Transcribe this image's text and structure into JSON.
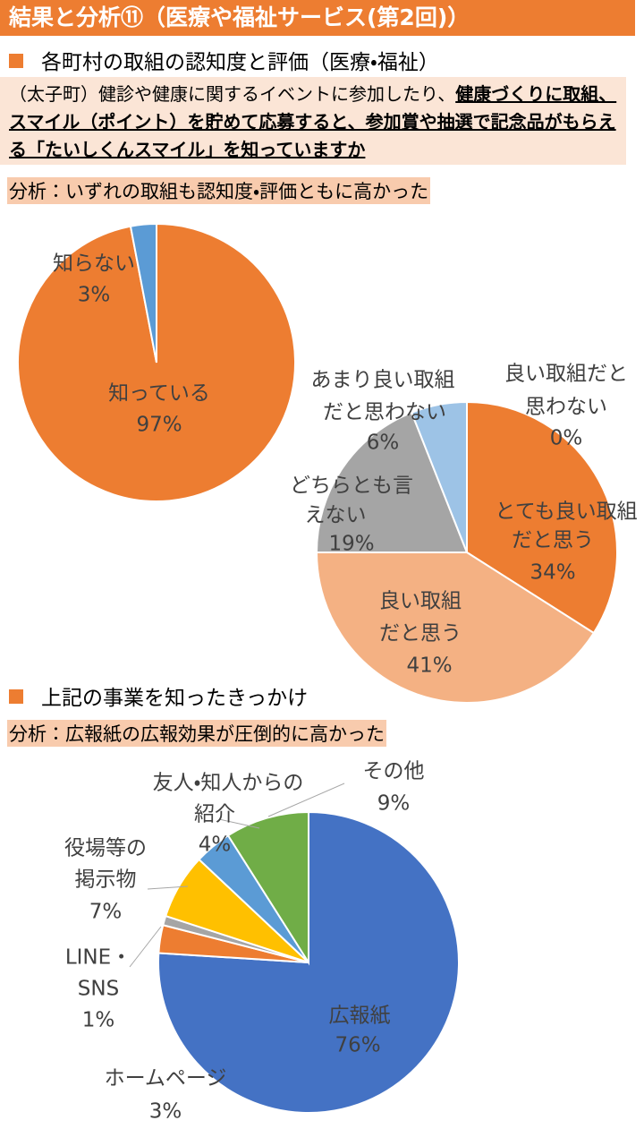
{
  "header": {
    "title": "結果と分析⑪（医療や福祉サービス(第2回)）"
  },
  "sections": [
    {
      "heading": "各町村の取組の認知度と評価（医療・福祉）",
      "question": {
        "plain": "（太子町）健診や健康に関するイベントに参加したり、",
        "underlined": "健康づくりに取組、スマイル（ポイント）を貯めて応募すると、参加賞や抽選で記念品がもらえる「たいしくんスマイル」を知っていますか"
      },
      "analysis": "分析：いずれの取組も認知度・評価ともに高かった"
    },
    {
      "heading": "上記の事業を知ったきっかけ",
      "analysis": "分析：広報紙の広報効果が圧倒的に高かった"
    }
  ],
  "chart_data": [
    {
      "type": "pie",
      "categories": [
        [
          "知っている"
        ],
        [
          "知らない"
        ]
      ],
      "values": [
        97,
        3
      ],
      "value_labels": [
        "97%",
        "3%"
      ],
      "colors": [
        "#ed7d31",
        "#5b9bd5"
      ]
    },
    {
      "type": "pie",
      "categories": [
        [
          "とても良い取組",
          "だと思う"
        ],
        [
          "良い取組",
          "だと思う"
        ],
        [
          "どちらとも言",
          "えない"
        ],
        [
          "あまり良い取組",
          "だと思わない"
        ],
        [
          "良い取組だと",
          "思わない"
        ]
      ],
      "values": [
        34,
        41,
        19,
        6,
        0
      ],
      "value_labels": [
        "34%",
        "41%",
        "19%",
        "6%",
        "0%"
      ],
      "colors": [
        "#ed7d31",
        "#f4b183",
        "#a5a5a5",
        "#9dc3e6",
        "#2f5597"
      ]
    },
    {
      "type": "pie",
      "categories": [
        [
          "広報紙"
        ],
        [
          "ホームページ"
        ],
        [
          "LINE・",
          "SNS"
        ],
        [
          "役場等の",
          "掲示物"
        ],
        [
          "友人・知人からの",
          "紹介"
        ],
        [
          "その他"
        ]
      ],
      "values": [
        76,
        3,
        1,
        7,
        4,
        9
      ],
      "value_labels": [
        "76%",
        "3%",
        "1%",
        "7%",
        "4%",
        "9%"
      ],
      "colors": [
        "#4472c4",
        "#ed7d31",
        "#a5a5a5",
        "#ffc000",
        "#5b9bd5",
        "#70ad47"
      ]
    }
  ]
}
